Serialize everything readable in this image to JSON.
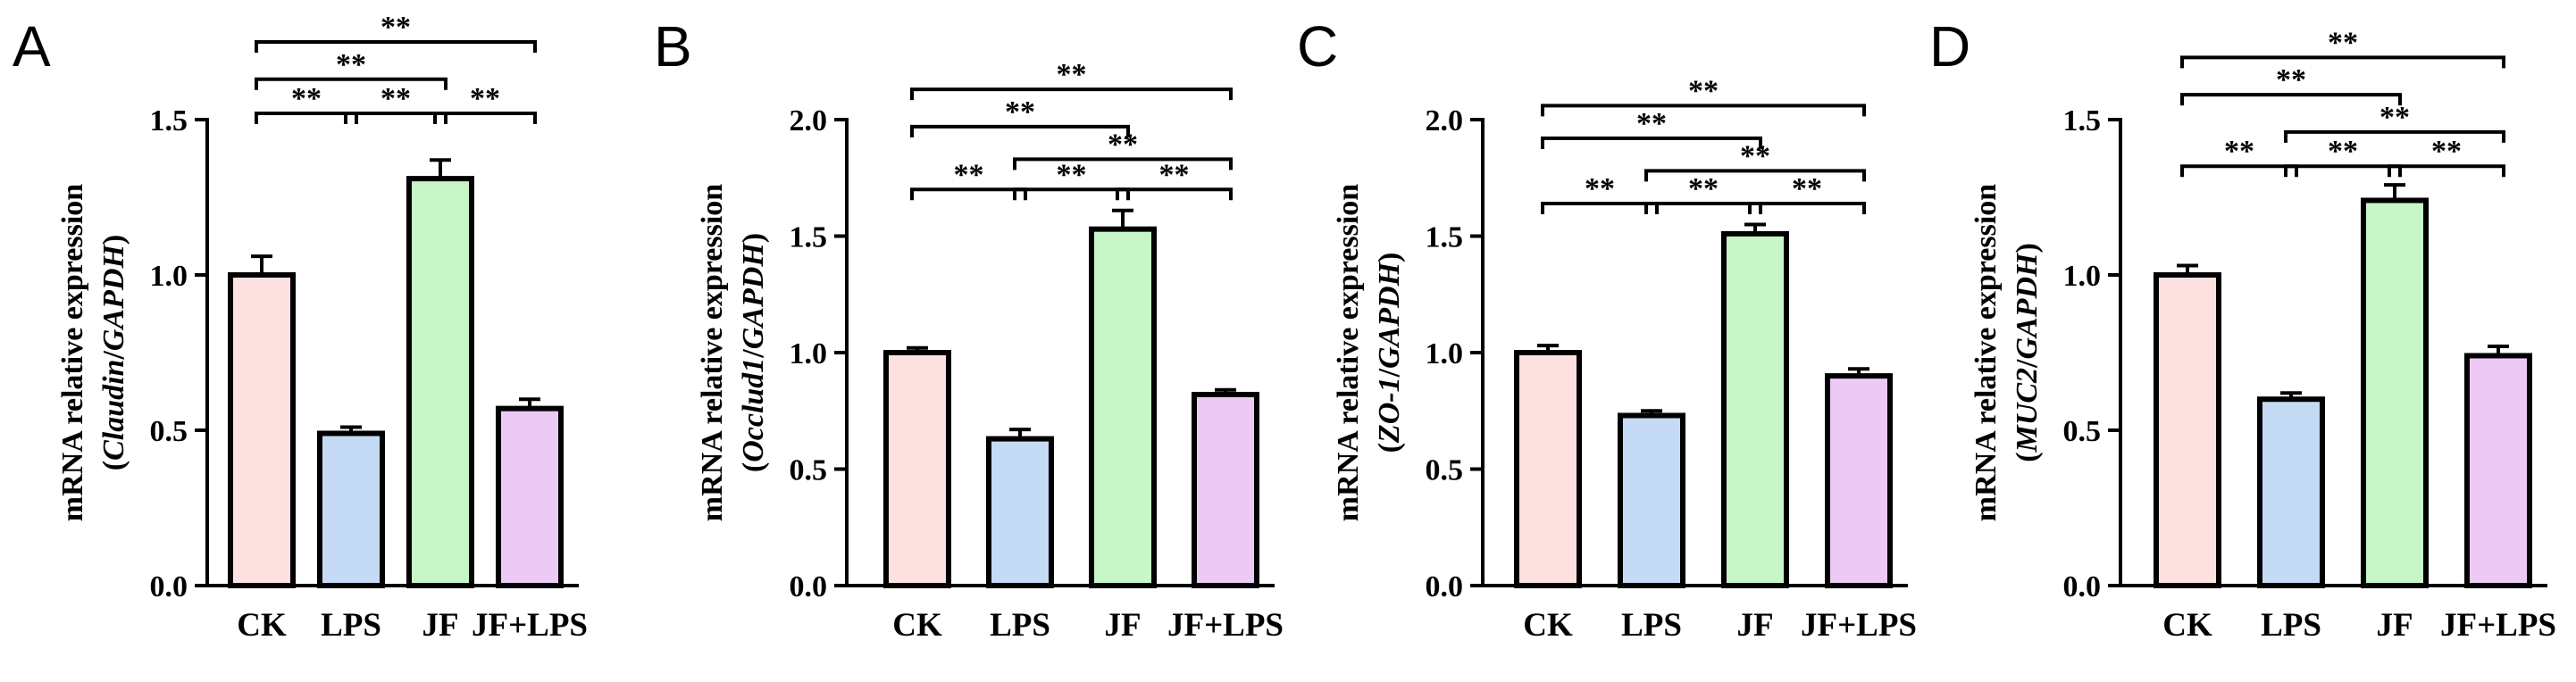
{
  "colors": {
    "CK": "#fde0e0",
    "LPS": "#c5daf5",
    "JF": "#c7f7c7",
    "JF+LPS": "#edc9f5"
  },
  "chart_data": [
    {
      "type": "bar",
      "panel": "A",
      "categories": [
        "CK",
        "LPS",
        "JF",
        "JF+LPS"
      ],
      "values": [
        1.0,
        0.49,
        1.31,
        0.57
      ],
      "errors": [
        0.06,
        0.02,
        0.06,
        0.03
      ],
      "ylabel_line1": "mRNA relative expression",
      "ylabel_prefix": "(",
      "ylabel_gene": "Claudin",
      "ylabel_mid": "/",
      "ylabel_ref": "GAPDH",
      "ylabel_suffix": ")",
      "ylim": [
        0,
        1.5
      ],
      "yticks": [
        "0.0",
        "0.5",
        "1.0",
        "1.5"
      ],
      "ytick_values": [
        0,
        0.5,
        1.0,
        1.5
      ],
      "brackets": [
        {
          "from": 0,
          "to": 1,
          "y": 1.52,
          "label": "**"
        },
        {
          "from": 1,
          "to": 2,
          "y": 1.52,
          "label": "**"
        },
        {
          "from": 2,
          "to": 3,
          "y": 1.52,
          "label": "**"
        },
        {
          "from": 0,
          "to": 2,
          "y": 1.63,
          "label": "**"
        },
        {
          "from": 0,
          "to": 3,
          "y": 1.75,
          "label": "**"
        }
      ]
    },
    {
      "type": "bar",
      "panel": "B",
      "categories": [
        "CK",
        "LPS",
        "JF",
        "JF+LPS"
      ],
      "values": [
        1.0,
        0.63,
        1.53,
        0.82
      ],
      "errors": [
        0.02,
        0.04,
        0.08,
        0.02
      ],
      "ylabel_line1": "mRNA relative expression",
      "ylabel_prefix": "(",
      "ylabel_gene": "Occlud1",
      "ylabel_mid": "/",
      "ylabel_ref": "GAPDH",
      "ylabel_suffix": ")",
      "ylim": [
        0,
        2.0
      ],
      "yticks": [
        "0.0",
        "0.5",
        "1.0",
        "1.5",
        "2.0"
      ],
      "ytick_values": [
        0,
        0.5,
        1.0,
        1.5,
        2.0
      ],
      "brackets": [
        {
          "from": 0,
          "to": 1,
          "y": 1.7,
          "label": "**"
        },
        {
          "from": 1,
          "to": 2,
          "y": 1.7,
          "label": "**"
        },
        {
          "from": 2,
          "to": 3,
          "y": 1.7,
          "label": "**"
        },
        {
          "from": 1,
          "to": 3,
          "y": 1.83,
          "label": "**"
        },
        {
          "from": 0,
          "to": 2,
          "y": 1.97,
          "label": "**"
        },
        {
          "from": 0,
          "to": 3,
          "y": 2.13,
          "label": "**"
        }
      ]
    },
    {
      "type": "bar",
      "panel": "C",
      "categories": [
        "CK",
        "LPS",
        "JF",
        "JF+LPS"
      ],
      "values": [
        1.0,
        0.73,
        1.51,
        0.9
      ],
      "errors": [
        0.03,
        0.02,
        0.04,
        0.03
      ],
      "ylabel_line1": "mRNA relative expression",
      "ylabel_prefix": "(",
      "ylabel_gene": "ZO-1",
      "ylabel_mid": "/",
      "ylabel_ref": "GAPDH",
      "ylabel_suffix": ")",
      "ylim": [
        0,
        2.0
      ],
      "yticks": [
        "0.0",
        "0.5",
        "1.0",
        "1.5",
        "2.0"
      ],
      "ytick_values": [
        0,
        0.5,
        1.0,
        1.5,
        2.0
      ],
      "brackets": [
        {
          "from": 0,
          "to": 1,
          "y": 1.64,
          "label": "**"
        },
        {
          "from": 1,
          "to": 2,
          "y": 1.64,
          "label": "**"
        },
        {
          "from": 2,
          "to": 3,
          "y": 1.64,
          "label": "**"
        },
        {
          "from": 1,
          "to": 3,
          "y": 1.78,
          "label": "**"
        },
        {
          "from": 0,
          "to": 2,
          "y": 1.92,
          "label": "**"
        },
        {
          "from": 0,
          "to": 3,
          "y": 2.06,
          "label": "**"
        }
      ]
    },
    {
      "type": "bar",
      "panel": "D",
      "categories": [
        "CK",
        "LPS",
        "JF",
        "JF+LPS"
      ],
      "values": [
        1.0,
        0.6,
        1.24,
        0.74
      ],
      "errors": [
        0.03,
        0.02,
        0.05,
        0.03
      ],
      "ylabel_line1": "mRNA relative expression",
      "ylabel_prefix": "(",
      "ylabel_gene": "MUC2",
      "ylabel_mid": "/",
      "ylabel_ref": "GAPDH",
      "ylabel_suffix": ")",
      "ylim": [
        0,
        1.5
      ],
      "yticks": [
        "0.0",
        "0.5",
        "1.0",
        "1.5"
      ],
      "ytick_values": [
        0,
        0.5,
        1.0,
        1.5
      ],
      "brackets": [
        {
          "from": 0,
          "to": 1,
          "y": 1.35,
          "label": "**"
        },
        {
          "from": 1,
          "to": 2,
          "y": 1.35,
          "label": "**"
        },
        {
          "from": 2,
          "to": 3,
          "y": 1.35,
          "label": "**"
        },
        {
          "from": 1,
          "to": 3,
          "y": 1.46,
          "label": "**"
        },
        {
          "from": 0,
          "to": 2,
          "y": 1.58,
          "label": "**"
        },
        {
          "from": 0,
          "to": 3,
          "y": 1.7,
          "label": "**"
        }
      ]
    }
  ]
}
